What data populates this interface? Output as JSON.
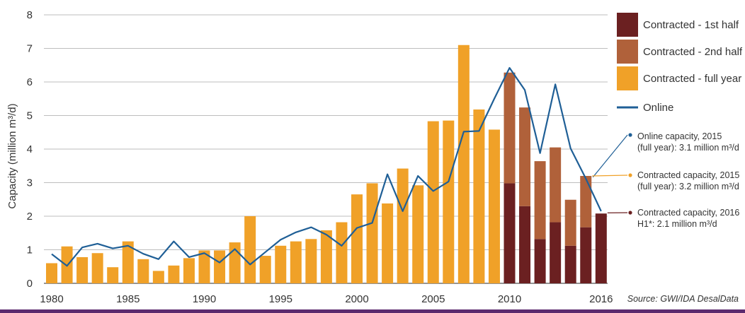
{
  "chart_data": {
    "type": "bar",
    "stacked": true,
    "ylabel": "Capacity (million m³/d)",
    "ylim": [
      0,
      8
    ],
    "yticks": [
      0,
      1,
      2,
      3,
      4,
      5,
      6,
      7,
      8
    ],
    "xticks": [
      1980,
      1985,
      1990,
      1995,
      2000,
      2005,
      2010,
      2016
    ],
    "x": [
      1980,
      1981,
      1982,
      1983,
      1984,
      1985,
      1986,
      1987,
      1988,
      1989,
      1990,
      1991,
      1992,
      1993,
      1994,
      1995,
      1996,
      1997,
      1998,
      1999,
      2000,
      2001,
      2002,
      2003,
      2004,
      2005,
      2006,
      2007,
      2008,
      2009,
      2010,
      2011,
      2012,
      2013,
      2014,
      2015,
      2016
    ],
    "grid": true,
    "legend_position": "right",
    "series": [
      {
        "name": "Contracted - 1st half",
        "color": "#6b2021",
        "values": [
          null,
          null,
          null,
          null,
          null,
          null,
          null,
          null,
          null,
          null,
          null,
          null,
          null,
          null,
          null,
          null,
          null,
          null,
          null,
          null,
          null,
          null,
          null,
          null,
          null,
          null,
          null,
          null,
          null,
          null,
          2.98,
          2.3,
          1.32,
          1.82,
          1.12,
          1.67,
          2.08
        ]
      },
      {
        "name": "Contracted - 2nd half",
        "color": "#b0613a",
        "values": [
          null,
          null,
          null,
          null,
          null,
          null,
          null,
          null,
          null,
          null,
          null,
          null,
          null,
          null,
          null,
          null,
          null,
          null,
          null,
          null,
          null,
          null,
          null,
          null,
          null,
          null,
          null,
          null,
          null,
          null,
          3.3,
          2.94,
          2.32,
          2.23,
          1.37,
          1.53,
          null
        ]
      },
      {
        "name": "Contracted - full year",
        "color": "#f0a128",
        "values": [
          0.6,
          1.1,
          0.78,
          0.9,
          0.48,
          1.25,
          0.72,
          0.37,
          0.53,
          0.75,
          0.98,
          0.98,
          1.22,
          2.0,
          0.82,
          1.12,
          1.25,
          1.32,
          1.58,
          1.82,
          2.65,
          2.98,
          2.38,
          3.42,
          2.92,
          4.83,
          4.85,
          7.1,
          5.18,
          4.58,
          null,
          null,
          null,
          null,
          null,
          null,
          null
        ]
      },
      {
        "name": "Online",
        "color": "#1f5f96",
        "type": "line",
        "values": [
          0.87,
          0.52,
          1.07,
          1.18,
          1.04,
          1.12,
          0.88,
          0.72,
          1.25,
          0.78,
          0.9,
          0.62,
          1.02,
          0.56,
          0.93,
          1.3,
          1.52,
          1.67,
          1.45,
          1.12,
          1.65,
          1.8,
          3.25,
          2.15,
          3.2,
          2.75,
          3.03,
          4.52,
          4.54,
          5.5,
          6.42,
          5.76,
          3.88,
          5.93,
          4.02,
          3.12,
          2.15
        ]
      }
    ],
    "annotations": [
      {
        "lines": [
          "Online capacity, 2015",
          "(full year): 3.1 million m³/d"
        ],
        "color": "#1f5f96"
      },
      {
        "lines": [
          "Contracted capacity, 2015",
          "(full year): 3.2 million m³/d"
        ],
        "color": "#f0a128"
      },
      {
        "lines": [
          "Contracted capacity, 2016",
          "H1*: 2.1 million m³/d"
        ],
        "color": "#6b2021"
      }
    ],
    "source": "Source: GWI/IDA DesalData",
    "bottom_bar_color": "#5b2a6e"
  }
}
